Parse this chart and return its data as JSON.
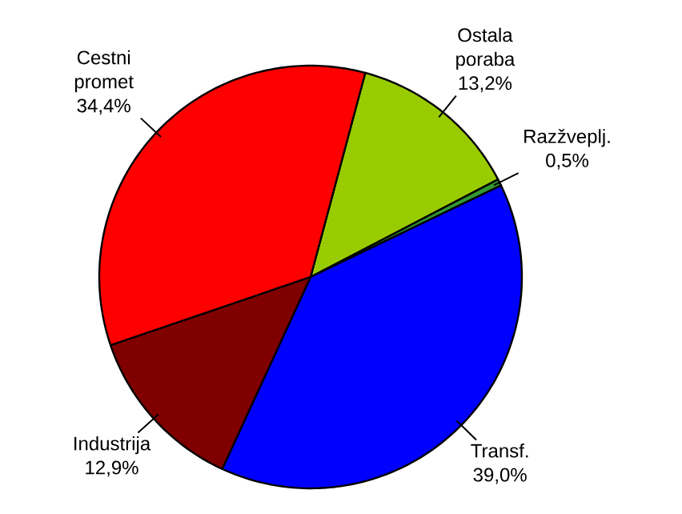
{
  "chart_data": {
    "type": "pie",
    "categories": [
      "Ostala poraba",
      "Razžveplj.",
      "Transf.",
      "Industrija",
      "Cestni promet"
    ],
    "values": [
      13.2,
      0.5,
      39.0,
      12.9,
      34.4
    ],
    "value_labels": [
      "13,2%",
      "0,5%",
      "39,0%",
      "12,9%",
      "34,4%"
    ],
    "colors": [
      "#99cc00",
      "#339933",
      "#0000ff",
      "#800000",
      "#ff0000"
    ]
  }
}
